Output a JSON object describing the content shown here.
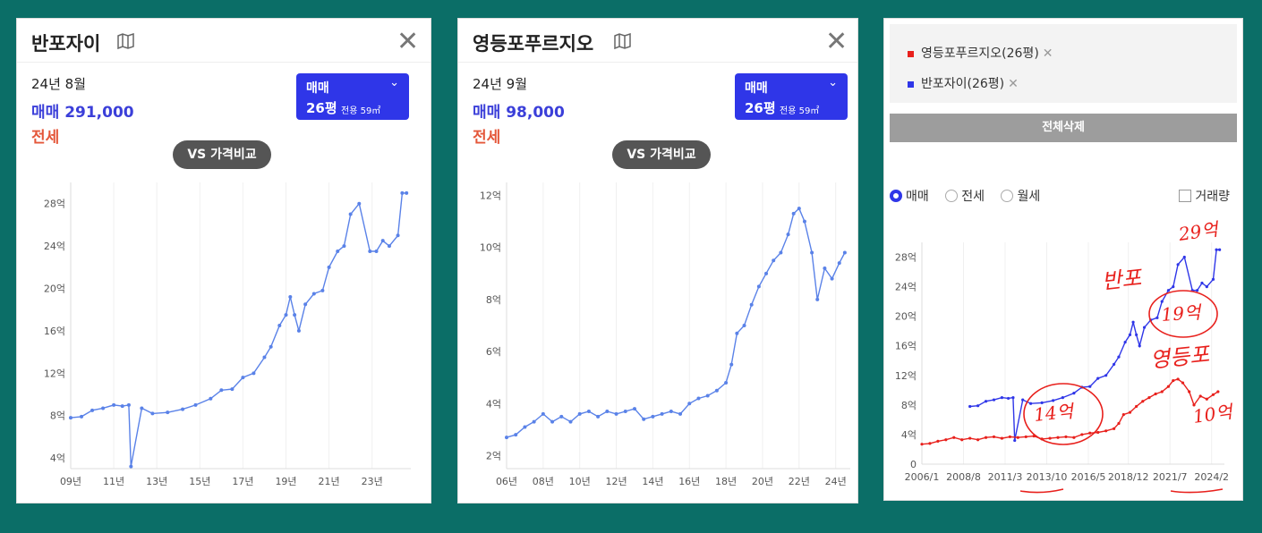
{
  "panel1": {
    "title": "반포자이",
    "date": "24년 8월",
    "price_label": "매매 291,000",
    "jeonse_label": "전세",
    "select": {
      "type": "매매",
      "size": "26평",
      "sub": "전용 59㎡"
    },
    "vs_label": "VS 가격비교"
  },
  "panel2": {
    "title": "영등포푸르지오",
    "date": "24년 9월",
    "price_label": "매매 98,000",
    "jeonse_label": "전세",
    "select": {
      "type": "매매",
      "size": "26평",
      "sub": "전용 59㎡"
    },
    "vs_label": "VS 가격비교"
  },
  "panel3": {
    "legend": [
      {
        "name": "영등포푸르지오(26평)",
        "color": "#e8201c"
      },
      {
        "name": "반포자이(26평)",
        "color": "#2f36e8"
      }
    ],
    "delete_all": "전체삭제",
    "radios": [
      {
        "label": "매매",
        "selected": true
      },
      {
        "label": "전세",
        "selected": false
      },
      {
        "label": "월세",
        "selected": false
      }
    ],
    "volume_label": "거래량",
    "annotations": [
      "29억",
      "반포",
      "19억",
      "영등포",
      "14억",
      "10억"
    ]
  },
  "chart_data": [
    {
      "type": "line",
      "series": [
        {
          "name": "매매",
          "color": "#5a82e8",
          "x": [
            2009.0,
            2009.5,
            2010.0,
            2010.5,
            2011.0,
            2011.4,
            2011.7,
            2011.8,
            2012.3,
            2012.8,
            2013.5,
            2014.2,
            2014.8,
            2015.5,
            2016.0,
            2016.5,
            2017.0,
            2017.5,
            2018.0,
            2018.3,
            2018.7,
            2019.0,
            2019.2,
            2019.4,
            2019.6,
            2019.9,
            2020.3,
            2020.7,
            2021.0,
            2021.4,
            2021.7,
            2022.0,
            2022.4,
            2022.9,
            2023.2,
            2023.5,
            2023.8,
            2024.2,
            2024.4,
            2024.6
          ],
          "y": [
            7.8,
            7.9,
            8.5,
            8.7,
            9.0,
            8.9,
            9.0,
            3.2,
            8.7,
            8.2,
            8.3,
            8.6,
            9.0,
            9.6,
            10.4,
            10.5,
            11.6,
            12.0,
            13.5,
            14.5,
            16.5,
            17.5,
            19.2,
            17.5,
            16.0,
            18.5,
            19.5,
            19.8,
            22.0,
            23.5,
            24.0,
            27.0,
            28.0,
            23.5,
            23.5,
            24.5,
            24.0,
            25.0,
            29.0,
            29.0
          ]
        }
      ],
      "x_tick_labels": [
        "09년",
        "11년",
        "13년",
        "15년",
        "17년",
        "19년",
        "21년",
        "23년"
      ],
      "y_tick_labels": [
        "4억",
        "8억",
        "12억",
        "16억",
        "20억",
        "24억",
        "28억"
      ],
      "ylim": [
        3,
        30
      ]
    },
    {
      "type": "line",
      "series": [
        {
          "name": "매매",
          "color": "#5a82e8",
          "x": [
            2006.0,
            2006.5,
            2007.0,
            2007.5,
            2008.0,
            2008.5,
            2009.0,
            2009.5,
            2010.0,
            2010.5,
            2011.0,
            2011.5,
            2012.0,
            2012.5,
            2013.0,
            2013.5,
            2014.0,
            2014.5,
            2015.0,
            2015.5,
            2016.0,
            2016.5,
            2017.0,
            2017.5,
            2018.0,
            2018.3,
            2018.6,
            2019.0,
            2019.4,
            2019.8,
            2020.2,
            2020.6,
            2021.0,
            2021.4,
            2021.7,
            2022.0,
            2022.3,
            2022.7,
            2023.0,
            2023.4,
            2023.8,
            2024.2,
            2024.5
          ],
          "y": [
            2.7,
            2.8,
            3.1,
            3.3,
            3.6,
            3.3,
            3.5,
            3.3,
            3.6,
            3.7,
            3.5,
            3.7,
            3.6,
            3.7,
            3.8,
            3.4,
            3.5,
            3.6,
            3.7,
            3.6,
            4.0,
            4.2,
            4.3,
            4.5,
            4.8,
            5.5,
            6.7,
            7.0,
            7.8,
            8.5,
            9.0,
            9.5,
            9.8,
            10.5,
            11.3,
            11.5,
            11.0,
            9.8,
            8.0,
            9.2,
            8.8,
            9.4,
            9.8
          ]
        }
      ],
      "x_tick_labels": [
        "06년",
        "08년",
        "10년",
        "12년",
        "14년",
        "16년",
        "18년",
        "20년",
        "22년",
        "24년"
      ],
      "y_tick_labels": [
        "2억",
        "4억",
        "6억",
        "8억",
        "10억",
        "12억"
      ],
      "ylim": [
        1.5,
        12.5
      ]
    },
    {
      "type": "line",
      "series": [
        {
          "name": "반포자이(26평)",
          "color": "#2f36e8",
          "x": [
            2009.0,
            2009.5,
            2010.0,
            2010.5,
            2011.0,
            2011.4,
            2011.7,
            2011.8,
            2012.3,
            2012.8,
            2013.5,
            2014.2,
            2014.8,
            2015.5,
            2016.0,
            2016.5,
            2017.0,
            2017.5,
            2018.0,
            2018.3,
            2018.7,
            2019.0,
            2019.2,
            2019.4,
            2019.6,
            2019.9,
            2020.3,
            2020.7,
            2021.0,
            2021.4,
            2021.7,
            2022.0,
            2022.4,
            2022.9,
            2023.2,
            2023.5,
            2023.8,
            2024.2,
            2024.4,
            2024.6
          ],
          "y": [
            7.8,
            7.9,
            8.5,
            8.7,
            9.0,
            8.9,
            9.0,
            3.2,
            8.7,
            8.2,
            8.3,
            8.6,
            9.0,
            9.6,
            10.4,
            10.5,
            11.6,
            12.0,
            13.5,
            14.5,
            16.5,
            17.5,
            19.2,
            17.5,
            16.0,
            18.5,
            19.5,
            19.8,
            22.0,
            23.5,
            24.0,
            27.0,
            28.0,
            23.5,
            23.5,
            24.5,
            24.0,
            25.0,
            29.0,
            29.0
          ]
        },
        {
          "name": "영등포푸르지오(26평)",
          "color": "#e8201c",
          "x": [
            2006.0,
            2006.5,
            2007.0,
            2007.5,
            2008.0,
            2008.5,
            2009.0,
            2009.5,
            2010.0,
            2010.5,
            2011.0,
            2011.5,
            2012.0,
            2012.5,
            2013.0,
            2013.5,
            2014.0,
            2014.5,
            2015.0,
            2015.5,
            2016.0,
            2016.5,
            2017.0,
            2017.5,
            2018.0,
            2018.3,
            2018.6,
            2019.0,
            2019.4,
            2019.8,
            2020.2,
            2020.6,
            2021.0,
            2021.4,
            2021.7,
            2022.0,
            2022.3,
            2022.7,
            2023.0,
            2023.4,
            2023.8,
            2024.2,
            2024.5
          ],
          "y": [
            2.7,
            2.8,
            3.1,
            3.3,
            3.6,
            3.3,
            3.5,
            3.3,
            3.6,
            3.7,
            3.5,
            3.7,
            3.6,
            3.7,
            3.8,
            3.4,
            3.5,
            3.6,
            3.7,
            3.6,
            4.0,
            4.2,
            4.3,
            4.5,
            4.8,
            5.5,
            6.7,
            7.0,
            7.8,
            8.5,
            9.0,
            9.5,
            9.8,
            10.5,
            11.3,
            11.5,
            11.0,
            9.8,
            8.0,
            9.2,
            8.8,
            9.4,
            9.8
          ]
        }
      ],
      "x_tick_labels": [
        "2006/1",
        "2008/8",
        "2011/3",
        "2013/10",
        "2016/5",
        "2018/12",
        "2021/7",
        "2024/2"
      ],
      "y_tick_labels": [
        "0",
        "4억",
        "8억",
        "12억",
        "16억",
        "20억",
        "24억",
        "28억"
      ],
      "ylim": [
        0,
        30
      ]
    }
  ]
}
